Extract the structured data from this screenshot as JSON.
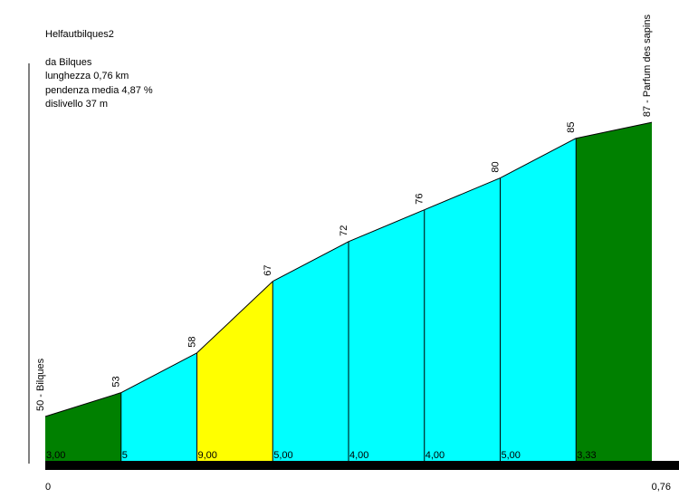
{
  "header": {
    "title": "Helfautbilques2",
    "start": "da Bilques",
    "length": "lunghezza 0,76 km",
    "avg_grade": "pendenza media 4,87 %",
    "elevation_gain": "dislivello 37 m"
  },
  "chart_data": {
    "type": "area",
    "title": "Helfautbilques2",
    "x_unit": "km",
    "x": [
      0,
      0.095,
      0.19,
      0.285,
      0.38,
      0.475,
      0.57,
      0.665,
      0.76
    ],
    "elevations": [
      50,
      53,
      58,
      67,
      72,
      76,
      80,
      85,
      87
    ],
    "elevation_labels": [
      "50 - Bilques",
      "53",
      "58",
      "67",
      "72",
      "76",
      "80",
      "85",
      "87 - Parfum des sapins"
    ],
    "segment_grades": [
      "3,00",
      "5",
      "9,00",
      "5,00",
      "4,00",
      "4,00",
      "5,00",
      "3,33"
    ],
    "segment_colors": [
      "#008000",
      "#00ffff",
      "#ffff00",
      "#00ffff",
      "#00ffff",
      "#00ffff",
      "#00ffff",
      "#008000"
    ],
    "x_tick_labels": [
      "0",
      "0,76"
    ],
    "xlim": [
      0,
      0.76
    ]
  }
}
